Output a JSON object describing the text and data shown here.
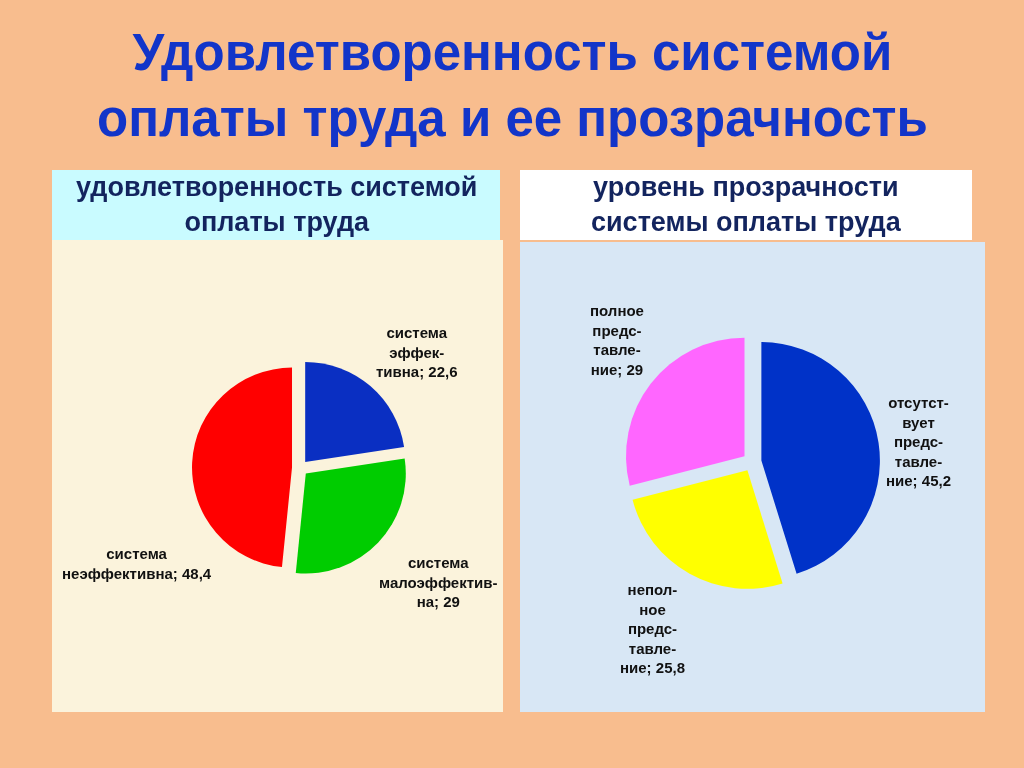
{
  "chart_data": [
    {
      "type": "pie",
      "title": "удовлетворенность системой оплаты труда",
      "annotations": [
        "Удовлетворенность системой оплаты труда и ее прозрачность"
      ],
      "categories": [
        "система эффек-тивна",
        "система малоэффектив-на",
        "система неэффективна"
      ],
      "values": [
        22.6,
        29,
        48.4
      ],
      "value_labels": [
        "22,6",
        "29",
        "48,4"
      ],
      "colors": [
        "#0a2fc2",
        "#00cc00",
        "#ff0000"
      ]
    },
    {
      "type": "pie",
      "title": "уровень прозрачности системы оплаты труда",
      "categories": [
        "отсутст-вует предс-тавле-ние",
        "непол-ное предс-тавле-ние",
        "полное предс-тавле-ние"
      ],
      "values": [
        45.2,
        25.8,
        29
      ],
      "value_labels": [
        "45,2",
        "25,8",
        "29"
      ],
      "colors": [
        "#0032c8",
        "#ffff00",
        "#ff66ff"
      ]
    }
  ]
}
